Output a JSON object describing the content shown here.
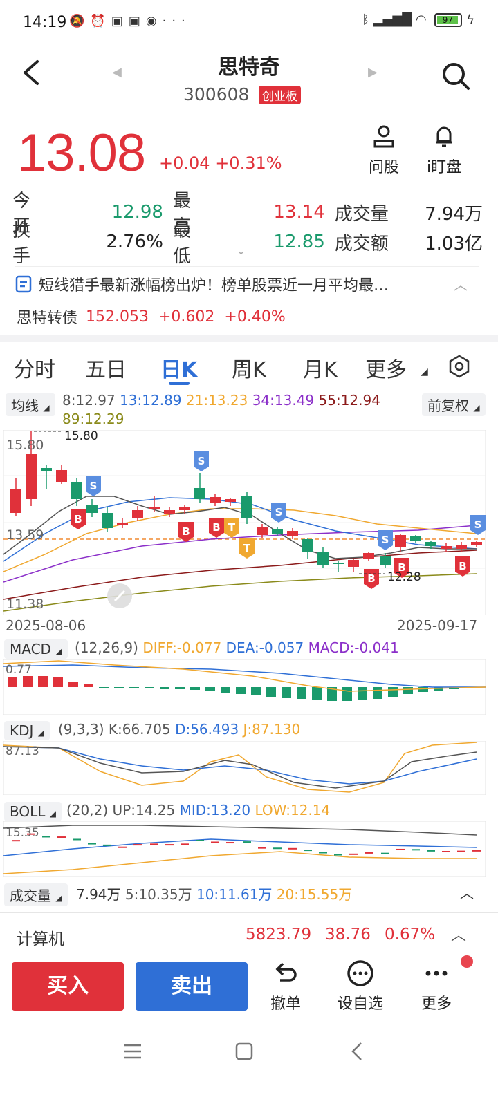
{
  "status": {
    "time": "14:19",
    "battery": "97"
  },
  "header": {
    "title": "思特奇",
    "code": "300608",
    "board": "创业板"
  },
  "quote": {
    "price": "13.08",
    "change": "+0.04",
    "change_pct": "+0.31%",
    "ask_label": "问股",
    "watch_label": "i盯盘"
  },
  "stats": {
    "open_label": "今开",
    "open": "12.98",
    "high_label": "最高",
    "high": "13.14",
    "volume_label": "成交量",
    "volume": "7.94万",
    "turnover_label": "换手",
    "turnover": "2.76%",
    "low_label": "最低",
    "low": "12.85",
    "amount_label": "成交额",
    "amount": "1.03亿"
  },
  "news": {
    "text": "短线猎手最新涨幅榜出炉！榜单股票近一月平均最…"
  },
  "bond": {
    "name": "思特转债",
    "price": "152.053",
    "change": "+0.602",
    "change_pct": "+0.40%"
  },
  "tabs": [
    "分时",
    "五日",
    "日K",
    "周K",
    "月K",
    "更多"
  ],
  "active_tab": "日K",
  "ma": {
    "label": "均线",
    "ma8": "8:12.97",
    "ma13": "13:12.89",
    "ma21": "21:13.23",
    "ma34": "34:13.49",
    "ma55": "55:12.94",
    "ma89": "89:12.29",
    "adjust": "前复权",
    "colors": {
      "ma8": "#555555",
      "ma13": "#2f6fd6",
      "ma21": "#f0a830",
      "ma34": "#8b2fc9",
      "ma55": "#8b1a1a",
      "ma89": "#8a8a1a"
    }
  },
  "kline": {
    "top_label": "15.80",
    "high_mark": "15.80",
    "mid_label": "13.59",
    "bottom_label": "11.38",
    "low_mark": "12.28",
    "start_date": "2025-08-06",
    "end_date": "2025-09-17"
  },
  "macd": {
    "label": "MACD",
    "params": "(12,26,9)",
    "diff": "DIFF:-0.077",
    "dea": "DEA:-0.057",
    "macd": "MACD:-0.041",
    "axis": "0.77"
  },
  "kdj": {
    "label": "KDJ",
    "params": "(9,3,3)",
    "k": "K:66.705",
    "d": "D:56.493",
    "j": "J:87.130",
    "axis": "87.13"
  },
  "boll": {
    "label": "BOLL",
    "params": "(20,2)",
    "up": "UP:14.25",
    "mid": "MID:13.20",
    "low": "LOW:12.14",
    "axis": "15.35"
  },
  "vol": {
    "label": "成交量",
    "value": "7.94万",
    "ma5": "5:10.35万",
    "ma10": "10:11.61万",
    "ma20": "20:15.55万"
  },
  "sector": {
    "name": "计算机",
    "index": "5823.79",
    "change": "38.76",
    "change_pct": "0.67%"
  },
  "bottom": {
    "buy": "买入",
    "sell": "卖出",
    "cancel": "撤单",
    "watchlist": "设自选",
    "more": "更多"
  }
}
